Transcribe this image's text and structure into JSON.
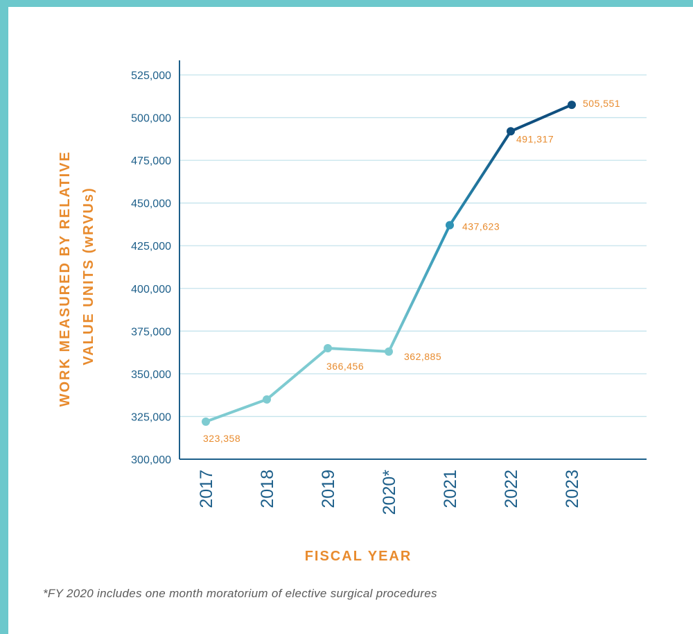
{
  "chart_data": {
    "type": "line",
    "x": [
      "2017",
      "2018",
      "2019",
      "2020*",
      "2021",
      "2022",
      "2023"
    ],
    "series": [
      {
        "values": [
          322000,
          335000,
          365000,
          363000,
          437000,
          492000,
          507500
        ]
      }
    ],
    "data_labels": [
      "323,358",
      "",
      "366,456",
      "362,885",
      "437,623",
      "491,317",
      "505,551"
    ],
    "xlabel": "FISCAL YEAR",
    "ylabel_lines": [
      "WORK MEASURED BY RELATIVE",
      "VALUE UNITS (wRVUs)"
    ],
    "ylim": [
      300000,
      525000
    ],
    "yticks": [
      300000,
      325000,
      350000,
      375000,
      400000,
      425000,
      450000,
      475000,
      500000,
      525000
    ],
    "ytick_labels": [
      "300,000",
      "325,000",
      "350,000",
      "375,000",
      "400,000",
      "425,000",
      "450,000",
      "475,000",
      "500,000",
      "525,000"
    ],
    "grid": true,
    "colors": {
      "axis": "#1d5f8a",
      "grid": "#c4e3ec",
      "label": "#e88b2e",
      "line_light": "#7ecbd1",
      "line_mid": "#2f93b5",
      "line_dark": "#0f4f7f",
      "frame": "#6cc8cc"
    }
  },
  "footnote": "*FY 2020 includes one month moratorium of elective surgical procedures"
}
